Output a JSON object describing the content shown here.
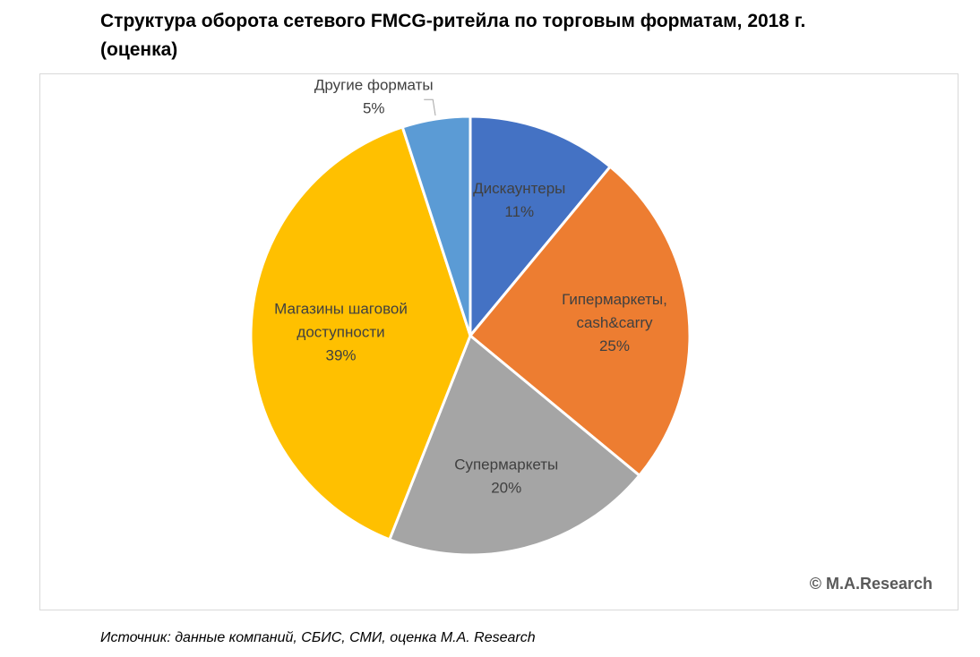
{
  "title": {
    "line1": "Структура оборота сетевого FMCG-ритейла по торговым форматам, 2018 г.",
    "line2": "(оценка)"
  },
  "copyright": "©  M.A.Research",
  "source": "Источник: данные компаний, СБИС, СМИ, оценка M.A. Research",
  "chart_data": {
    "type": "pie",
    "title": "Структура оборота сетевого FMCG-ритейла по торговым форматам, 2018 г. (оценка)",
    "slices": [
      {
        "label": [
          "Дискаунтеры"
        ],
        "value": 11,
        "value_label": "11%",
        "color": "#4472C4"
      },
      {
        "label": [
          "Гипермаркеты,",
          "cash&carry"
        ],
        "value": 25,
        "value_label": "25%",
        "color": "#ED7D31"
      },
      {
        "label": [
          "Супермаркеты"
        ],
        "value": 20,
        "value_label": "20%",
        "color": "#A5A5A5"
      },
      {
        "label": [
          "Магазины шаговой",
          "доступности"
        ],
        "value": 39,
        "value_label": "39%",
        "color": "#FFC000"
      },
      {
        "label": [
          "Другие форматы"
        ],
        "value": 5,
        "value_label": "5%",
        "color": "#5B9BD5"
      }
    ],
    "start_angle": "12 o'clock",
    "direction": "clockwise",
    "legend": "none",
    "label_color": "#404040"
  }
}
